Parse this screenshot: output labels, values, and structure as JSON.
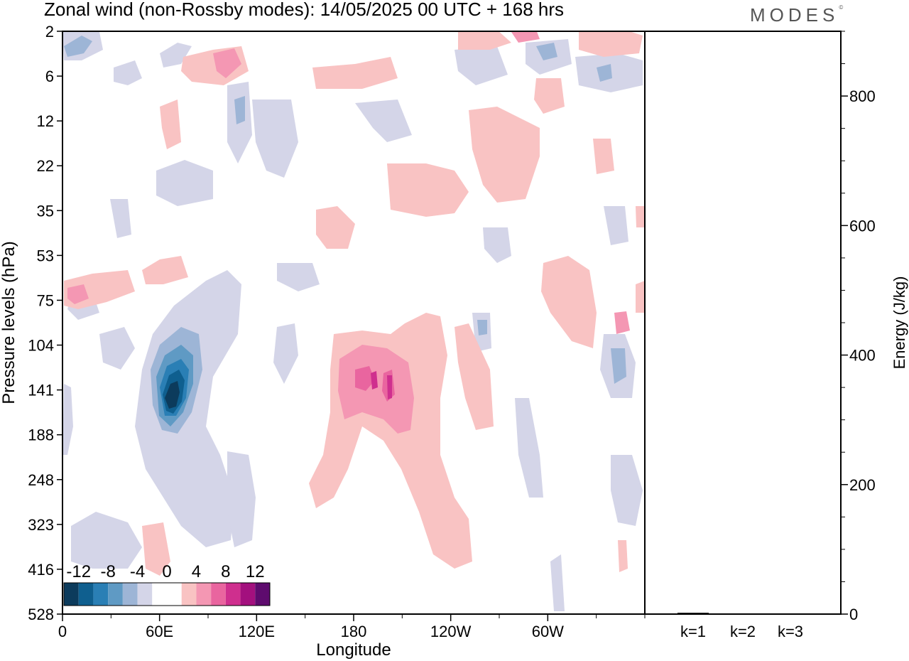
{
  "title": "Zonal wind (non-Rossby modes):  14/05/2025  00 UTC  + 168 hrs",
  "logo": {
    "text": "MODES",
    "mark": "©"
  },
  "chart_data": [
    {
      "type": "heatmap",
      "field": "Zonal wind (non-Rossby modes)",
      "xlabel": "Longitude",
      "ylabel": "Pressure levels (hPa)",
      "x_ticks": [
        "0",
        "60E",
        "120E",
        "180",
        "120W",
        "60W"
      ],
      "x_range": [
        0,
        360
      ],
      "y_ticks": [
        "2",
        "6",
        "12",
        "22",
        "35",
        "53",
        "75",
        "104",
        "141",
        "188",
        "248",
        "323",
        "416",
        "528"
      ],
      "colorbar": {
        "labels": [
          "-12",
          "-8",
          "-4",
          "0",
          "4",
          "8",
          "12"
        ],
        "colors": [
          "#0c3b5c",
          "#0f5f8f",
          "#2a7fb5",
          "#5f9ac4",
          "#9db5d6",
          "#d4d5e8",
          "#ffffff",
          "#ffffff",
          "#f9c3c3",
          "#f497b3",
          "#e9659f",
          "#cf2f8e",
          "#a3107e",
          "#5e0b6e"
        ]
      },
      "features": [
        {
          "name": "easterly core 60E",
          "lon": 62,
          "level": "141",
          "value": -12
        },
        {
          "name": "westerly core near dateline",
          "lon": 200,
          "level": "141",
          "value": 8
        },
        {
          "name": "westerly band",
          "lon": 10,
          "level": "75",
          "value": 6
        }
      ]
    },
    {
      "type": "bar",
      "categories": [
        "k=1",
        "k=2",
        "k=3"
      ],
      "values": [
        2,
        1,
        1
      ],
      "ylabel": "Energy (J/kg)",
      "ylim": [
        0,
        900
      ],
      "y_ticks": [
        "0",
        "200",
        "400",
        "600",
        "800"
      ]
    }
  ]
}
